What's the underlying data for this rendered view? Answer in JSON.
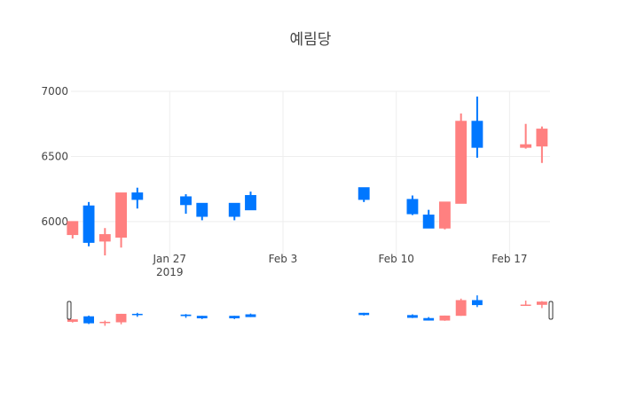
{
  "chart_data": {
    "type": "candlestick",
    "title": "예림당",
    "up_color": "#0077FF",
    "down_color": "#FF8080",
    "ylim": [
      5720,
      7000
    ],
    "yticks": [
      6000,
      6500,
      7000
    ],
    "y_tick_labels": [
      "6000",
      "6500",
      "7000"
    ],
    "x_tick_labels": [
      {
        "date": "2019-01-27",
        "label": "Jan 27",
        "sublabel": "2019"
      },
      {
        "date": "2019-02-03",
        "label": "Feb 3",
        "sublabel": ""
      },
      {
        "date": "2019-02-10",
        "label": "Feb 10",
        "sublabel": ""
      },
      {
        "date": "2019-02-17",
        "label": "Feb 17",
        "sublabel": ""
      }
    ],
    "xlim": [
      "2019-01-21",
      "2019-02-19"
    ],
    "grid": true,
    "rangeslider": true,
    "candles": [
      {
        "date": "2019-01-21",
        "open": 6000,
        "high": 6000,
        "low": 5870,
        "close": 5900
      },
      {
        "date": "2019-01-22",
        "open": 5840,
        "high": 6150,
        "low": 5810,
        "close": 6120
      },
      {
        "date": "2019-01-23",
        "open": 5900,
        "high": 5950,
        "low": 5740,
        "close": 5850
      },
      {
        "date": "2019-01-24",
        "open": 6220,
        "high": 6220,
        "low": 5800,
        "close": 5880
      },
      {
        "date": "2019-01-25",
        "open": 6170,
        "high": 6260,
        "low": 6100,
        "close": 6220
      },
      {
        "date": "2019-01-28",
        "open": 6130,
        "high": 6210,
        "low": 6060,
        "close": 6190
      },
      {
        "date": "2019-01-29",
        "open": 6040,
        "high": 6140,
        "low": 6010,
        "close": 6140
      },
      {
        "date": "2019-01-31",
        "open": 6040,
        "high": 6140,
        "low": 6010,
        "close": 6140
      },
      {
        "date": "2019-02-01",
        "open": 6090,
        "high": 6230,
        "low": 6090,
        "close": 6200
      },
      {
        "date": "2019-02-08",
        "open": 6170,
        "high": 6260,
        "low": 6150,
        "close": 6260
      },
      {
        "date": "2019-02-11",
        "open": 6060,
        "high": 6200,
        "low": 6050,
        "close": 6170
      },
      {
        "date": "2019-02-12",
        "open": 5950,
        "high": 6090,
        "low": 5950,
        "close": 6050
      },
      {
        "date": "2019-02-13",
        "open": 6150,
        "high": 6150,
        "low": 5940,
        "close": 5950
      },
      {
        "date": "2019-02-14",
        "open": 6770,
        "high": 6830,
        "low": 6140,
        "close": 6140
      },
      {
        "date": "2019-02-15",
        "open": 6570,
        "high": 6960,
        "low": 6490,
        "close": 6770
      },
      {
        "date": "2019-02-18",
        "open": 6590,
        "high": 6750,
        "low": 6560,
        "close": 6570
      },
      {
        "date": "2019-02-19",
        "open": 6710,
        "high": 6730,
        "low": 6450,
        "close": 6580
      }
    ]
  }
}
